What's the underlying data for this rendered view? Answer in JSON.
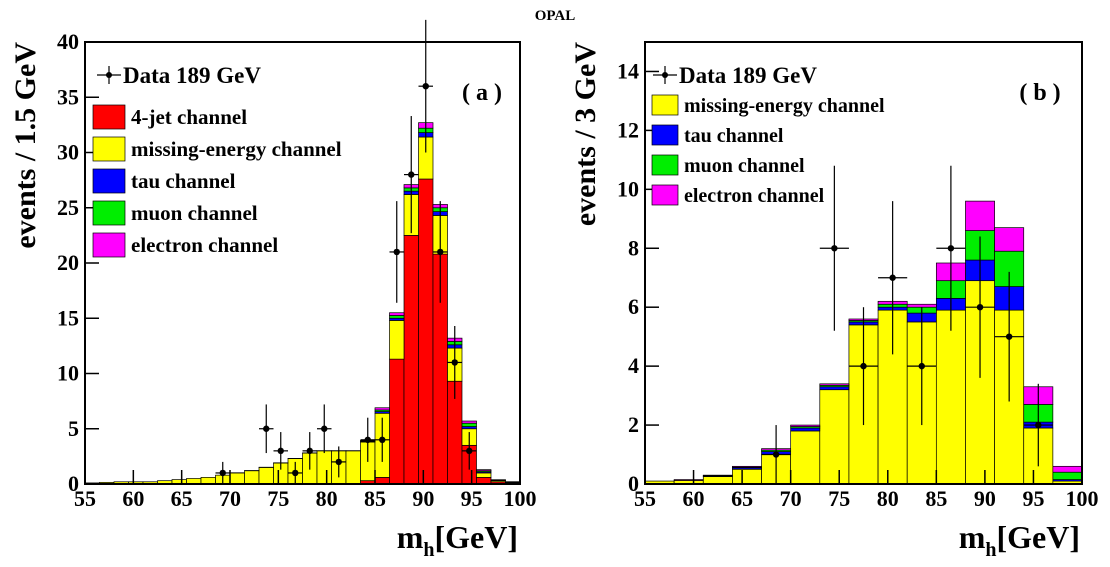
{
  "title": "OPAL",
  "chart_data": [
    {
      "type": "histogram",
      "panel_label": "( a )",
      "y_label": "events / 1.5 GeV",
      "x_label": {
        "main": "m",
        "sub": "h",
        "unit": "[GeV]"
      },
      "xlim": [
        55,
        100
      ],
      "xticks": [
        55,
        60,
        65,
        70,
        75,
        80,
        85,
        90,
        95,
        100
      ],
      "ylim": [
        0,
        40
      ],
      "yticks": [
        0,
        5,
        10,
        15,
        20,
        25,
        30,
        35,
        40
      ],
      "bins": [
        55,
        56.5,
        58,
        59.5,
        61,
        62.5,
        64,
        65.5,
        67,
        68.5,
        70,
        71.5,
        73,
        74.5,
        76,
        77.5,
        79,
        80.5,
        82,
        83.5,
        85,
        86.5,
        88,
        89.5,
        91,
        92.5,
        94,
        95.5,
        97,
        98.5,
        100
      ],
      "series": [
        {
          "name": "4-jet channel",
          "color": "#ff0000",
          "values": [
            0,
            0,
            0,
            0,
            0,
            0,
            0,
            0,
            0,
            0,
            0,
            0,
            0,
            0,
            0,
            0,
            0,
            0,
            0,
            0.3,
            0.6,
            11.3,
            22.5,
            27.6,
            20.8,
            9.3,
            3.5,
            0.6,
            0.2,
            0.1
          ]
        },
        {
          "name": "missing-energy channel",
          "color": "#ffff00",
          "values": [
            0.1,
            0.15,
            0.2,
            0.2,
            0.2,
            0.3,
            0.4,
            0.5,
            0.6,
            0.8,
            1.0,
            1.2,
            1.5,
            1.9,
            2.3,
            2.8,
            3.0,
            3.0,
            3.0,
            3.5,
            5.8,
            3.5,
            3.7,
            3.8,
            3.5,
            3.0,
            1.5,
            0.4,
            0.1,
            0.05
          ]
        },
        {
          "name": "tau channel",
          "color": "#0000ff",
          "values": [
            0,
            0,
            0,
            0,
            0,
            0,
            0,
            0,
            0,
            0,
            0.02,
            0.02,
            0.02,
            0.02,
            0.02,
            0.02,
            0.02,
            0.02,
            0.02,
            0.05,
            0.15,
            0.2,
            0.3,
            0.4,
            0.35,
            0.3,
            0.2,
            0.1,
            0.03,
            0.02
          ]
        },
        {
          "name": "muon channel",
          "color": "#00ee00",
          "values": [
            0,
            0,
            0,
            0,
            0,
            0,
            0,
            0,
            0,
            0,
            0,
            0,
            0,
            0,
            0,
            0,
            0,
            0,
            0,
            0.05,
            0.15,
            0.25,
            0.3,
            0.4,
            0.35,
            0.3,
            0.3,
            0.1,
            0.03,
            0.02
          ]
        },
        {
          "name": "electron channel",
          "color": "#ff00ff",
          "values": [
            0,
            0,
            0,
            0,
            0,
            0,
            0,
            0,
            0,
            0,
            0,
            0,
            0,
            0,
            0,
            0,
            0,
            0,
            0,
            0.05,
            0.2,
            0.25,
            0.3,
            0.5,
            0.3,
            0.3,
            0.2,
            0.1,
            0.03,
            0.02
          ]
        }
      ],
      "data": {
        "name": "Data 189 GeV",
        "x": [
          69.25,
          73.75,
          75.25,
          76.75,
          78.25,
          79.75,
          81.25,
          84.25,
          85.75,
          87.25,
          88.75,
          90.25,
          91.75,
          93.25,
          94.75
        ],
        "values": [
          1,
          5,
          3,
          1,
          3,
          5,
          2,
          4,
          4,
          21,
          28,
          36,
          21,
          11,
          3
        ],
        "errors": [
          1,
          2.2,
          1.7,
          1,
          1.7,
          2.2,
          1.4,
          2,
          2,
          4.6,
          5.3,
          6,
          4.6,
          3.3,
          1.7
        ]
      }
    },
    {
      "type": "histogram",
      "panel_label": "( b )",
      "y_label": "events / 3 GeV",
      "x_label": {
        "main": "m",
        "sub": "h",
        "unit": "[GeV]"
      },
      "xlim": [
        55,
        100
      ],
      "xticks": [
        55,
        60,
        65,
        70,
        75,
        80,
        85,
        90,
        95,
        100
      ],
      "ylim": [
        0,
        15
      ],
      "yticks": [
        0,
        2,
        4,
        6,
        8,
        10,
        12,
        14
      ],
      "bins": [
        55,
        58,
        61,
        64,
        67,
        70,
        73,
        76,
        79,
        82,
        85,
        88,
        91,
        94,
        97,
        100
      ],
      "series": [
        {
          "name": "missing-energy channel",
          "color": "#ffff00",
          "values": [
            0.1,
            0.12,
            0.25,
            0.5,
            1.0,
            1.8,
            3.2,
            5.4,
            5.9,
            5.5,
            5.9,
            6.9,
            5.9,
            1.9,
            0.1
          ]
        },
        {
          "name": "tau channel",
          "color": "#0000ff",
          "values": [
            0,
            0,
            0.02,
            0.05,
            0.1,
            0.1,
            0.1,
            0.1,
            0.1,
            0.3,
            0.4,
            0.7,
            0.8,
            0.2,
            0.05
          ]
        },
        {
          "name": "muon channel",
          "color": "#00ee00",
          "values": [
            0,
            0,
            0.01,
            0.02,
            0.05,
            0.05,
            0.05,
            0.05,
            0.1,
            0.2,
            0.6,
            1.0,
            1.2,
            0.6,
            0.25
          ]
        },
        {
          "name": "electron channel",
          "color": "#ff00ff",
          "values": [
            0,
            0.03,
            0.02,
            0.03,
            0.05,
            0.05,
            0.05,
            0.05,
            0.1,
            0.1,
            0.6,
            1.0,
            0.8,
            0.6,
            0.2
          ]
        }
      ],
      "data": {
        "name": "Data 189 GeV",
        "x": [
          68.5,
          74.5,
          77.5,
          80.5,
          83.5,
          86.5,
          89.5,
          92.5,
          95.5
        ],
        "values": [
          1,
          8,
          4,
          7,
          4,
          8,
          6,
          5,
          2
        ],
        "errors": [
          1,
          2.8,
          2,
          2.6,
          2,
          2.8,
          2.4,
          2.2,
          1.4
        ]
      }
    }
  ]
}
